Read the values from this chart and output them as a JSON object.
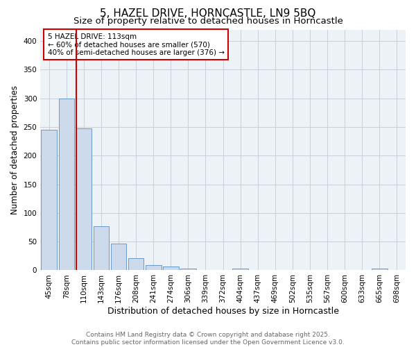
{
  "title": "5, HAZEL DRIVE, HORNCASTLE, LN9 5BQ",
  "subtitle": "Size of property relative to detached houses in Horncastle",
  "xlabel": "Distribution of detached houses by size in Horncastle",
  "ylabel": "Number of detached properties",
  "categories": [
    "45sqm",
    "78sqm",
    "110sqm",
    "143sqm",
    "176sqm",
    "208sqm",
    "241sqm",
    "274sqm",
    "306sqm",
    "339sqm",
    "372sqm",
    "404sqm",
    "437sqm",
    "469sqm",
    "502sqm",
    "535sqm",
    "567sqm",
    "600sqm",
    "633sqm",
    "665sqm",
    "698sqm"
  ],
  "values": [
    245,
    300,
    248,
    77,
    46,
    21,
    9,
    7,
    3,
    0,
    0,
    3,
    0,
    0,
    0,
    0,
    0,
    0,
    0,
    3,
    0
  ],
  "bar_color": "#ccdaeb",
  "bar_edge_color": "#6699cc",
  "vline_index": 2,
  "vline_color": "#cc0000",
  "annotation_line1": "5 HAZEL DRIVE: 113sqm",
  "annotation_line2": "← 60% of detached houses are smaller (570)",
  "annotation_line3": "40% of semi-detached houses are larger (376) →",
  "annotation_box_color": "#cc0000",
  "ylim": [
    0,
    420
  ],
  "yticks": [
    0,
    50,
    100,
    150,
    200,
    250,
    300,
    350,
    400
  ],
  "bg_color": "#edf2f7",
  "grid_color": "#c5d0dc",
  "footer_line1": "Contains HM Land Registry data © Crown copyright and database right 2025.",
  "footer_line2": "Contains public sector information licensed under the Open Government Licence v3.0.",
  "title_fontsize": 11,
  "subtitle_fontsize": 9.5,
  "xlabel_fontsize": 9,
  "ylabel_fontsize": 8.5,
  "tick_fontsize": 7.5,
  "annotation_fontsize": 7.5,
  "footer_fontsize": 6.5
}
